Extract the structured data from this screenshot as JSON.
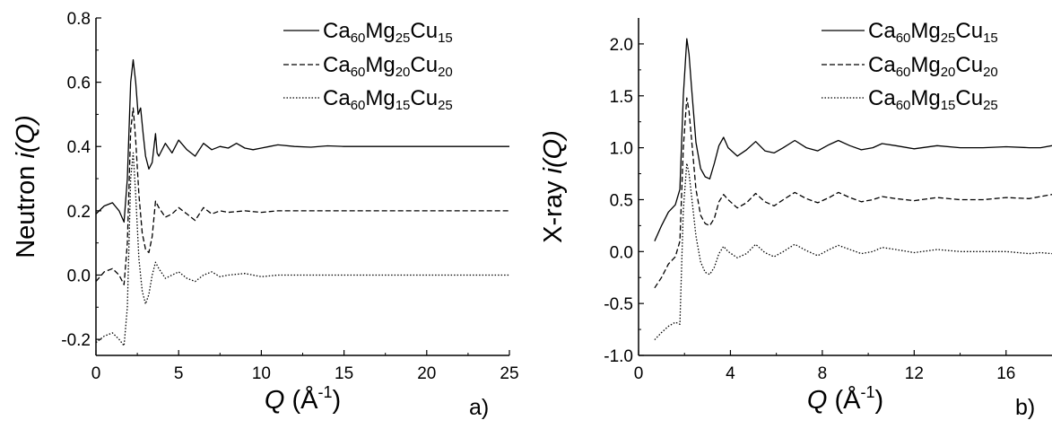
{
  "chart_data": [
    {
      "type": "line",
      "panel_label": "a)",
      "xlabel_italic": "Q",
      "xlabel_rest": " (Å",
      "xlabel_sup": "-1",
      "xlabel_end": ")",
      "ylabel_prefix": "Neutron ",
      "ylabel_italic": "i(Q)",
      "xlim": [
        0,
        25
      ],
      "ylim": [
        -0.25,
        0.8
      ],
      "xticks": [
        0,
        5,
        10,
        15,
        20,
        25
      ],
      "xtick_labels": [
        "0",
        "5",
        "10",
        "15",
        "20",
        "25"
      ],
      "yticks": [
        -0.2,
        0.0,
        0.2,
        0.4,
        0.6,
        0.8
      ],
      "ytick_labels": [
        "-0.2",
        "0.0",
        "0.2",
        "0.4",
        "0.6",
        "0.8"
      ],
      "legend_position": "top-right",
      "series": [
        {
          "name": "Ca60Mg25Cu15",
          "legend": {
            "a": "Ca",
            "a_sub": "60",
            "b": "Mg",
            "b_sub": "25",
            "c": "Cu",
            "c_sub": "15"
          },
          "style": "solid",
          "x": [
            0.0,
            0.5,
            1.0,
            1.4,
            1.7,
            1.9,
            2.1,
            2.25,
            2.4,
            2.55,
            2.7,
            2.85,
            3.0,
            3.2,
            3.4,
            3.6,
            3.7,
            3.8,
            4.2,
            4.6,
            5.0,
            5.5,
            6.0,
            6.5,
            7.0,
            7.5,
            8.0,
            8.5,
            9.0,
            9.5,
            10.0,
            10.5,
            11.0,
            12.0,
            13.0,
            14.0,
            15.0,
            17.5,
            20.0,
            22.5,
            25.0
          ],
          "y": [
            0.19,
            0.215,
            0.225,
            0.2,
            0.165,
            0.3,
            0.6,
            0.67,
            0.6,
            0.5,
            0.52,
            0.44,
            0.37,
            0.33,
            0.35,
            0.44,
            0.38,
            0.37,
            0.41,
            0.38,
            0.42,
            0.39,
            0.37,
            0.41,
            0.39,
            0.4,
            0.395,
            0.41,
            0.395,
            0.39,
            0.395,
            0.4,
            0.405,
            0.4,
            0.398,
            0.402,
            0.4,
            0.4,
            0.4,
            0.4,
            0.4
          ]
        },
        {
          "name": "Ca60Mg20Cu20",
          "legend": {
            "a": "Ca",
            "a_sub": "60",
            "b": "Mg",
            "b_sub": "20",
            "c": "Cu",
            "c_sub": "20"
          },
          "style": "dashed",
          "x": [
            0.0,
            0.5,
            1.0,
            1.4,
            1.7,
            1.9,
            2.1,
            2.25,
            2.4,
            2.6,
            2.8,
            3.0,
            3.2,
            3.4,
            3.6,
            3.8,
            4.2,
            4.6,
            5.0,
            5.5,
            6.0,
            6.5,
            7.0,
            7.5,
            8.0,
            9.0,
            10.0,
            11.0,
            12.0,
            15.0,
            17.5,
            20.0,
            22.5,
            25.0
          ],
          "y": [
            -0.02,
            0.01,
            0.02,
            0.0,
            -0.03,
            0.1,
            0.45,
            0.52,
            0.42,
            0.25,
            0.13,
            0.08,
            0.07,
            0.12,
            0.23,
            0.21,
            0.18,
            0.19,
            0.21,
            0.19,
            0.17,
            0.21,
            0.19,
            0.2,
            0.195,
            0.2,
            0.195,
            0.2,
            0.2,
            0.2,
            0.2,
            0.2,
            0.2,
            0.2
          ]
        },
        {
          "name": "Ca60Mg15Cu25",
          "legend": {
            "a": "Ca",
            "a_sub": "60",
            "b": "Mg",
            "b_sub": "15",
            "c": "Cu",
            "c_sub": "25"
          },
          "style": "dotted",
          "x": [
            0.0,
            0.5,
            1.0,
            1.4,
            1.7,
            1.9,
            2.1,
            2.25,
            2.4,
            2.6,
            2.8,
            3.0,
            3.2,
            3.4,
            3.6,
            3.8,
            4.2,
            4.6,
            5.0,
            5.5,
            6.0,
            6.5,
            7.0,
            7.5,
            8.0,
            9.0,
            10.0,
            11.0,
            12.0,
            15.0,
            17.5,
            20.0,
            22.5,
            25.0
          ],
          "y": [
            -0.21,
            -0.19,
            -0.18,
            -0.2,
            -0.22,
            -0.1,
            0.3,
            0.38,
            0.25,
            0.05,
            -0.05,
            -0.09,
            -0.06,
            0.0,
            0.04,
            0.02,
            -0.01,
            0.0,
            0.01,
            -0.01,
            -0.02,
            0.0,
            0.01,
            -0.005,
            0.0,
            0.005,
            -0.005,
            0.0,
            0.0,
            0.0,
            0.0,
            0.0,
            0.0,
            0.0
          ]
        }
      ]
    },
    {
      "type": "line",
      "panel_label": "b)",
      "xlabel_italic": "Q",
      "xlabel_rest": " (Å",
      "xlabel_sup": "-1",
      "xlabel_end": ")",
      "ylabel_prefix": "X-ray ",
      "ylabel_italic": "i(Q)",
      "xlim": [
        0,
        18
      ],
      "ylim": [
        -1.0,
        2.25
      ],
      "xticks": [
        0,
        4,
        8,
        12,
        16
      ],
      "xtick_labels": [
        "0",
        "4",
        "8",
        "12",
        "16"
      ],
      "yticks": [
        -1.0,
        -0.5,
        0.0,
        0.5,
        1.0,
        1.5,
        2.0
      ],
      "ytick_labels": [
        "-1.0",
        "-0.5",
        "0.0",
        "0.5",
        "1.0",
        "1.5",
        "2.0"
      ],
      "legend_position": "top-right",
      "series": [
        {
          "name": "Ca60Mg25Cu15",
          "legend": {
            "a": "Ca",
            "a_sub": "60",
            "b": "Mg",
            "b_sub": "25",
            "c": "Cu",
            "c_sub": "15"
          },
          "style": "solid",
          "x": [
            0.7,
            1.0,
            1.3,
            1.6,
            1.8,
            1.95,
            2.1,
            2.2,
            2.3,
            2.5,
            2.7,
            2.9,
            3.1,
            3.3,
            3.5,
            3.7,
            3.9,
            4.3,
            4.7,
            5.1,
            5.5,
            5.9,
            6.3,
            6.8,
            7.3,
            7.8,
            8.3,
            8.7,
            9.2,
            9.7,
            10.2,
            10.6,
            11.2,
            12.0,
            13.0,
            14.0,
            15.0,
            16.0,
            17.0,
            17.5,
            18.0
          ],
          "y": [
            0.1,
            0.25,
            0.38,
            0.45,
            0.6,
            1.5,
            2.05,
            1.9,
            1.6,
            1.05,
            0.8,
            0.72,
            0.7,
            0.85,
            1.02,
            1.1,
            1.0,
            0.92,
            0.98,
            1.06,
            0.97,
            0.95,
            1.0,
            1.07,
            1.0,
            0.97,
            1.03,
            1.07,
            1.02,
            0.98,
            1.0,
            1.04,
            1.02,
            0.99,
            1.02,
            1.0,
            1.0,
            1.01,
            1.0,
            1.0,
            1.02
          ]
        },
        {
          "name": "Ca60Mg20Cu20",
          "legend": {
            "a": "Ca",
            "a_sub": "60",
            "b": "Mg",
            "b_sub": "20",
            "c": "Cu",
            "c_sub": "20"
          },
          "style": "dashed",
          "x": [
            0.7,
            1.0,
            1.3,
            1.6,
            1.8,
            1.95,
            2.1,
            2.2,
            2.3,
            2.5,
            2.7,
            2.9,
            3.1,
            3.3,
            3.5,
            3.7,
            3.9,
            4.3,
            4.7,
            5.1,
            5.5,
            5.9,
            6.3,
            6.8,
            7.3,
            7.8,
            8.3,
            8.7,
            9.2,
            9.7,
            10.2,
            10.6,
            11.2,
            12.0,
            13.0,
            14.0,
            15.0,
            16.0,
            17.0,
            17.5,
            18.0
          ],
          "y": [
            -0.35,
            -0.25,
            -0.12,
            -0.05,
            0.1,
            1.0,
            1.48,
            1.35,
            1.1,
            0.6,
            0.35,
            0.27,
            0.25,
            0.32,
            0.48,
            0.55,
            0.5,
            0.42,
            0.47,
            0.56,
            0.48,
            0.44,
            0.5,
            0.57,
            0.51,
            0.47,
            0.52,
            0.57,
            0.52,
            0.48,
            0.5,
            0.53,
            0.51,
            0.49,
            0.52,
            0.5,
            0.5,
            0.52,
            0.51,
            0.53,
            0.55
          ]
        },
        {
          "name": "Ca60Mg15Cu25",
          "legend": {
            "a": "Ca",
            "a_sub": "60",
            "b": "Mg",
            "b_sub": "15",
            "c": "Cu",
            "c_sub": "25"
          },
          "style": "dotted",
          "x": [
            0.7,
            1.0,
            1.3,
            1.6,
            1.8,
            1.95,
            2.1,
            2.2,
            2.3,
            2.5,
            2.7,
            2.9,
            3.1,
            3.3,
            3.5,
            3.7,
            3.9,
            4.3,
            4.7,
            5.1,
            5.5,
            5.9,
            6.3,
            6.8,
            7.3,
            7.8,
            8.3,
            8.7,
            9.2,
            9.7,
            10.2,
            10.6,
            11.2,
            12.0,
            13.0,
            14.0,
            15.0,
            16.0,
            17.0,
            17.5,
            18.0
          ],
          "y": [
            -0.85,
            -0.78,
            -0.72,
            -0.68,
            -0.7,
            0.4,
            0.85,
            0.75,
            0.55,
            0.15,
            -0.1,
            -0.2,
            -0.22,
            -0.15,
            -0.02,
            0.05,
            0.0,
            -0.06,
            -0.02,
            0.07,
            -0.01,
            -0.05,
            0.0,
            0.07,
            0.01,
            -0.04,
            0.02,
            0.06,
            0.02,
            -0.02,
            0.0,
            0.04,
            0.02,
            -0.01,
            0.02,
            0.0,
            0.0,
            0.0,
            -0.02,
            -0.01,
            -0.02
          ]
        }
      ]
    }
  ]
}
